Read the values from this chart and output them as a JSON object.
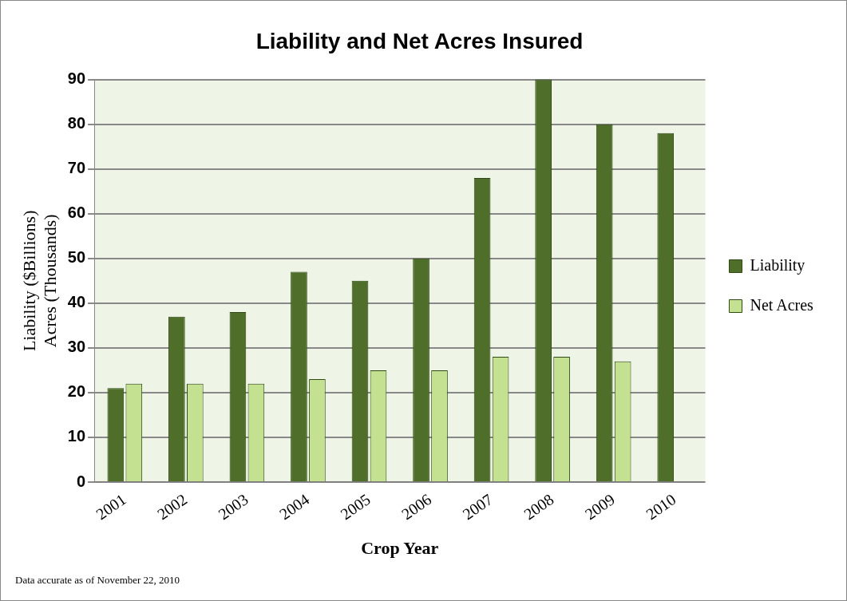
{
  "chart_data": {
    "type": "bar",
    "title": "Liability and Net Acres Insured",
    "xlabel": "Crop Year",
    "ylabel": "Liability ($Billions)\nAcres (Thousands)",
    "categories": [
      "2001",
      "2002",
      "2003",
      "2004",
      "2005",
      "2006",
      "2007",
      "2008",
      "2009",
      "2010"
    ],
    "series": [
      {
        "name": "Liability",
        "color": "#4f6e29",
        "values": [
          21,
          37,
          38,
          47,
          45,
          50,
          68,
          90,
          80,
          78
        ]
      },
      {
        "name": "Net Acres",
        "color": "#c4e192",
        "values": [
          22,
          22,
          22,
          23,
          25,
          25,
          28,
          28,
          27,
          null
        ]
      }
    ],
    "ylim": [
      0,
      90
    ],
    "yticks": [
      0,
      10,
      20,
      30,
      40,
      50,
      60,
      70,
      80,
      90
    ],
    "grid": "y",
    "legend": "right",
    "annotations": [
      "Data accurate as of November 22, 2010"
    ]
  }
}
